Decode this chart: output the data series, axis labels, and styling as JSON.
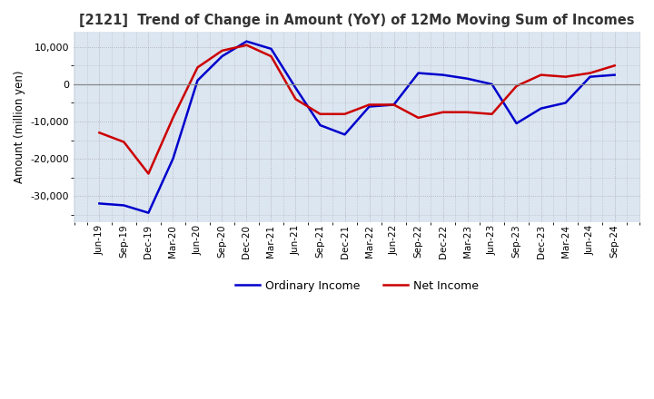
{
  "title": "[2121]  Trend of Change in Amount (YoY) of 12Mo Moving Sum of Incomes",
  "ylabel": "Amount (million yen)",
  "labels": [
    "Jun-19",
    "Sep-19",
    "Dec-19",
    "Mar-20",
    "Jun-20",
    "Sep-20",
    "Dec-20",
    "Mar-21",
    "Jun-21",
    "Sep-21",
    "Dec-21",
    "Mar-22",
    "Jun-22",
    "Sep-22",
    "Dec-22",
    "Mar-23",
    "Jun-23",
    "Sep-23",
    "Dec-23",
    "Mar-24",
    "Jun-24",
    "Sep-24"
  ],
  "ordinary_income": [
    -32000,
    -32500,
    -34500,
    -20000,
    1000,
    7500,
    11500,
    9500,
    -1000,
    -11000,
    -13500,
    -6000,
    -5500,
    3000,
    2500,
    1500,
    0,
    -10500,
    -6500,
    -5000,
    2000,
    2500
  ],
  "net_income": [
    -13000,
    -15500,
    -24000,
    -9000,
    4500,
    9000,
    10500,
    7500,
    -4000,
    -8000,
    -8000,
    -5500,
    -5500,
    -9000,
    -7500,
    -7500,
    -8000,
    -500,
    2500,
    2000,
    3000,
    5000
  ],
  "ordinary_color": "#0000cc",
  "net_color": "#cc0000",
  "ylim": [
    -37000,
    14000
  ],
  "yticks": [
    -30000,
    -20000,
    -10000,
    0,
    10000
  ],
  "plot_bg_color": "#dce6f1",
  "fig_bg_color": "#ffffff",
  "grid_color": "#aaaaaa",
  "title_color": "#333333",
  "zero_line_color": "#888888"
}
